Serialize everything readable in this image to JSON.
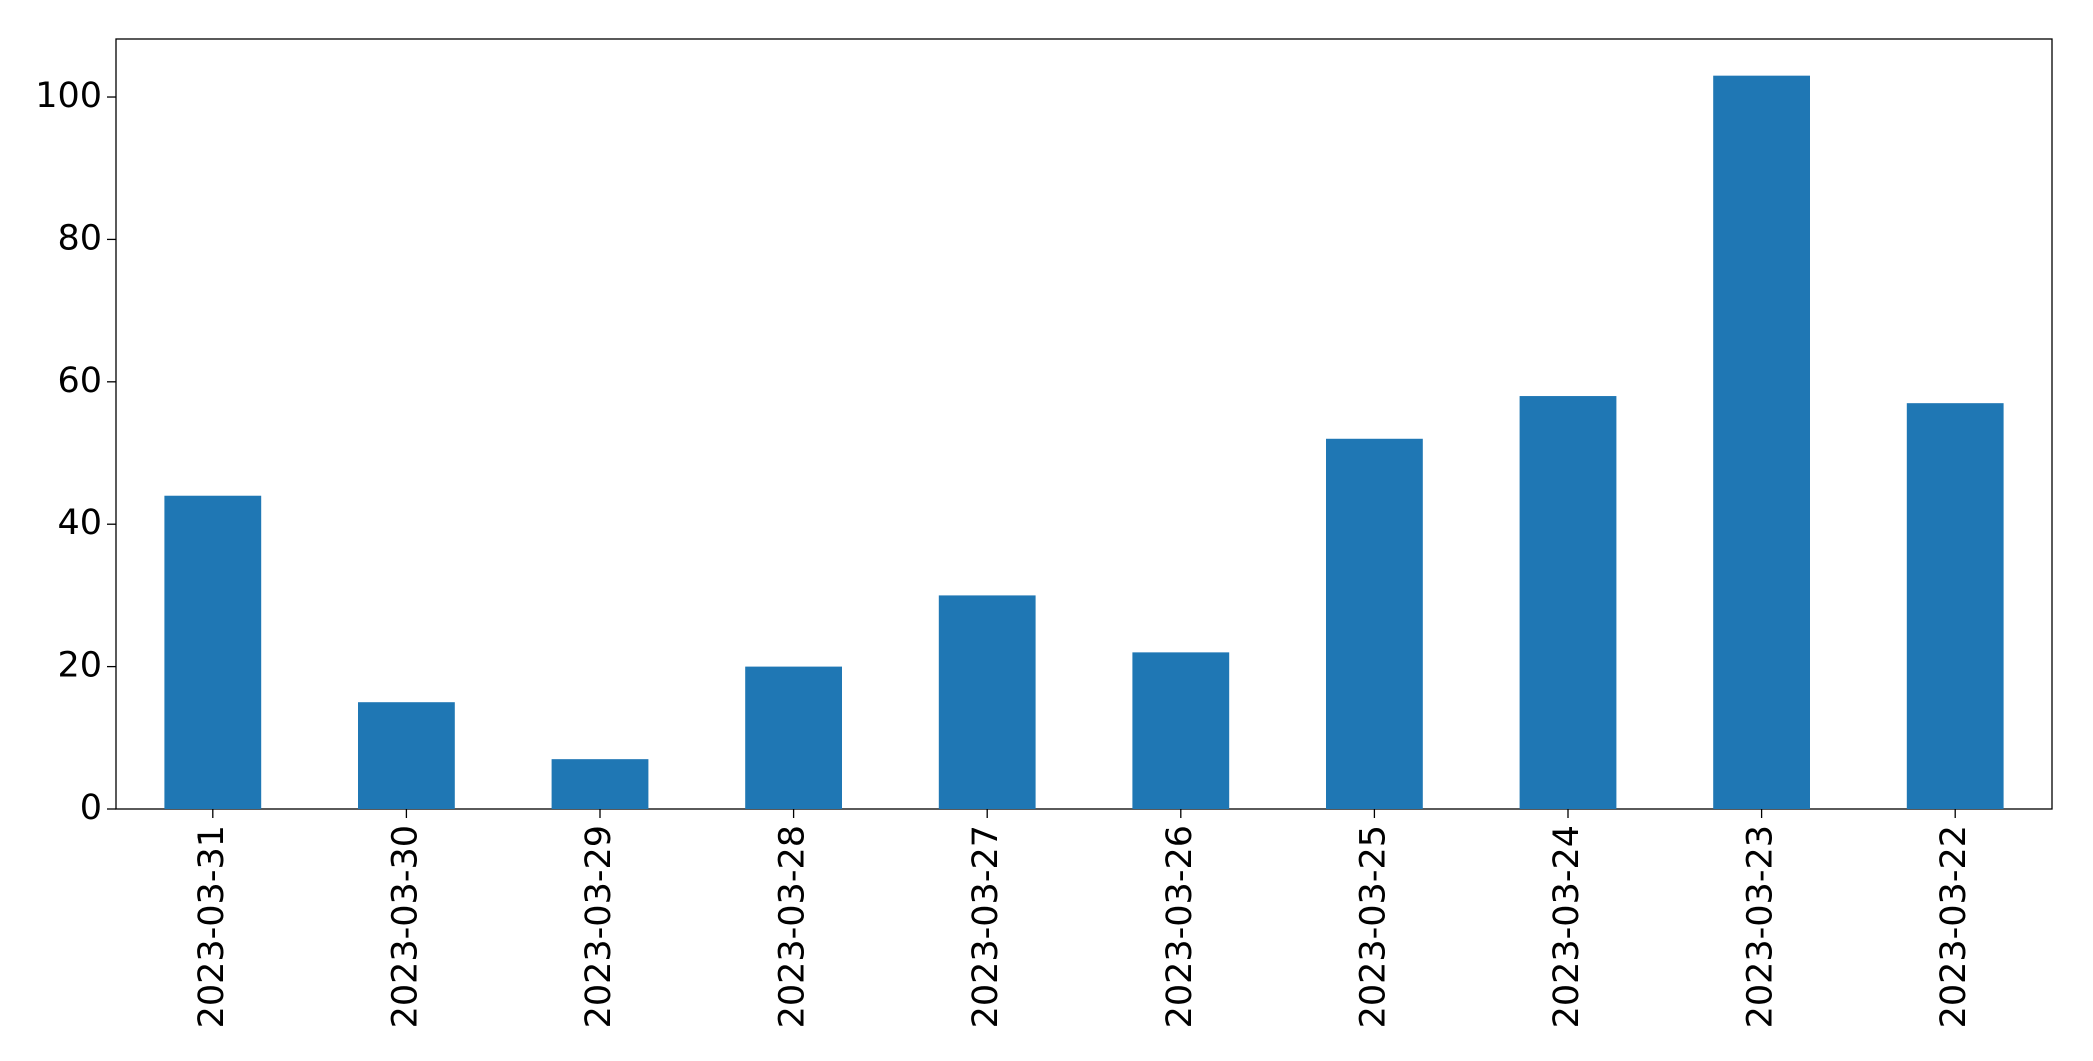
{
  "chart_data": {
    "type": "bar",
    "categories": [
      "2023-03-31",
      "2023-03-30",
      "2023-03-29",
      "2023-03-28",
      "2023-03-27",
      "2023-03-26",
      "2023-03-25",
      "2023-03-24",
      "2023-03-23",
      "2023-03-22"
    ],
    "values": [
      44,
      15,
      7,
      20,
      30,
      22,
      52,
      58,
      103,
      57
    ],
    "color": "#1f77b4",
    "ylim": [
      0,
      108.15
    ],
    "yticks": [
      0,
      20,
      40,
      60,
      80,
      100
    ],
    "grid": false
  }
}
